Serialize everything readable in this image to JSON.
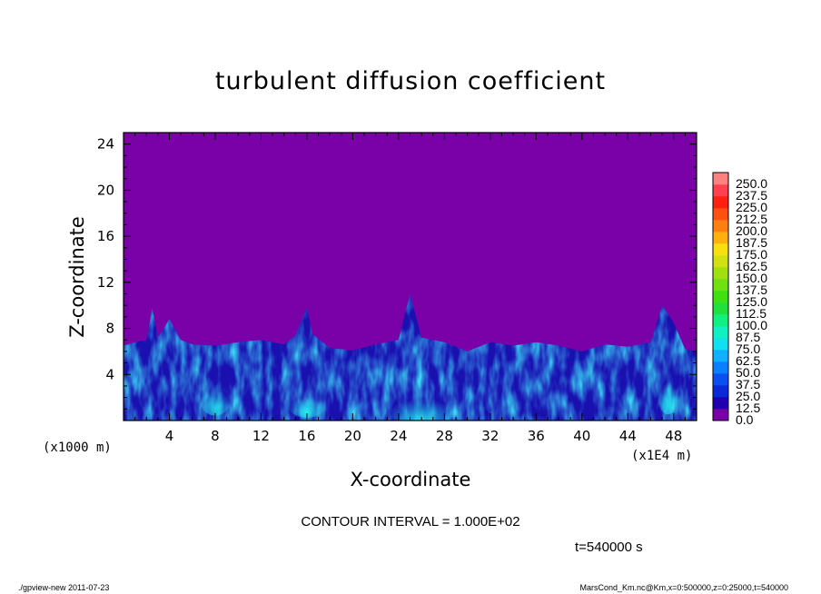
{
  "title": "turbulent diffusion coefficient",
  "contour_text": "CONTOUR INTERVAL = 1.000E+02",
  "time_text": "t=540000 s",
  "footer": {
    "left": "./gpview-new   2011-07-23",
    "right": "MarsCond_Km.nc@Km,x=0:500000,z=0:25000,t=540000"
  },
  "colors": {
    "background_field": "#7a00a8",
    "field_base": "#1a10b0"
  },
  "chart_data": {
    "type": "heatmap",
    "title": "turbulent diffusion coefficient",
    "xlabel": "X-coordinate",
    "ylabel": "Z-coordinate",
    "x_unit_note": "(x1000 m)",
    "x_scale_note": "(x1E4 m)",
    "xlim": [
      0,
      50
    ],
    "ylim": [
      0,
      25
    ],
    "x_ticks": [
      4,
      8,
      12,
      16,
      20,
      24,
      28,
      32,
      36,
      40,
      44,
      48
    ],
    "y_ticks": [
      4,
      8,
      12,
      16,
      20,
      24
    ],
    "colorbar": {
      "levels": [
        0.0,
        12.5,
        25.0,
        37.5,
        50.0,
        62.5,
        75.0,
        87.5,
        100.0,
        112.5,
        125.0,
        137.5,
        150.0,
        162.5,
        175.0,
        187.5,
        200.0,
        212.5,
        225.0,
        237.5,
        250.0
      ],
      "labels": [
        "0.0",
        "12.5",
        "25.0",
        "37.5",
        "50.0",
        "62.5",
        "75.0",
        "87.5",
        "100.0",
        "112.5",
        "125.0",
        "137.5",
        "150.0",
        "162.5",
        "175.0",
        "187.5",
        "200.0",
        "212.5",
        "225.0",
        "237.5",
        "250.0"
      ],
      "colors": [
        "#7a00a8",
        "#2200b0",
        "#0a2ad8",
        "#0a50f0",
        "#0a80ff",
        "#10b0ff",
        "#10e0f0",
        "#10f0c0",
        "#10f080",
        "#20e040",
        "#40e010",
        "#70e010",
        "#a0e010",
        "#d0e010",
        "#f8e010",
        "#ffb010",
        "#ff8010",
        "#ff5010",
        "#ff2010",
        "#ff4050",
        "#ff8080"
      ]
    },
    "boundary_layer_top": {
      "x": [
        0,
        1,
        2,
        2.5,
        3,
        4,
        5,
        6,
        8,
        10,
        12,
        14,
        15,
        16,
        16.5,
        18,
        20,
        22,
        24,
        25,
        26,
        28,
        30,
        32,
        34,
        36,
        38,
        40,
        42,
        44,
        46,
        47,
        48,
        49,
        50
      ],
      "z": [
        6.5,
        6.8,
        7.0,
        9.8,
        7.2,
        8.8,
        7.0,
        6.6,
        6.5,
        6.8,
        7.0,
        6.6,
        7.4,
        9.8,
        7.5,
        6.3,
        6.1,
        6.6,
        7.0,
        11.0,
        7.2,
        6.8,
        6.0,
        6.8,
        6.5,
        6.8,
        6.5,
        6.0,
        6.6,
        6.4,
        6.8,
        10.0,
        8.5,
        6.2,
        6.0
      ]
    }
  },
  "icons": [
    "colorbar-swatch"
  ]
}
